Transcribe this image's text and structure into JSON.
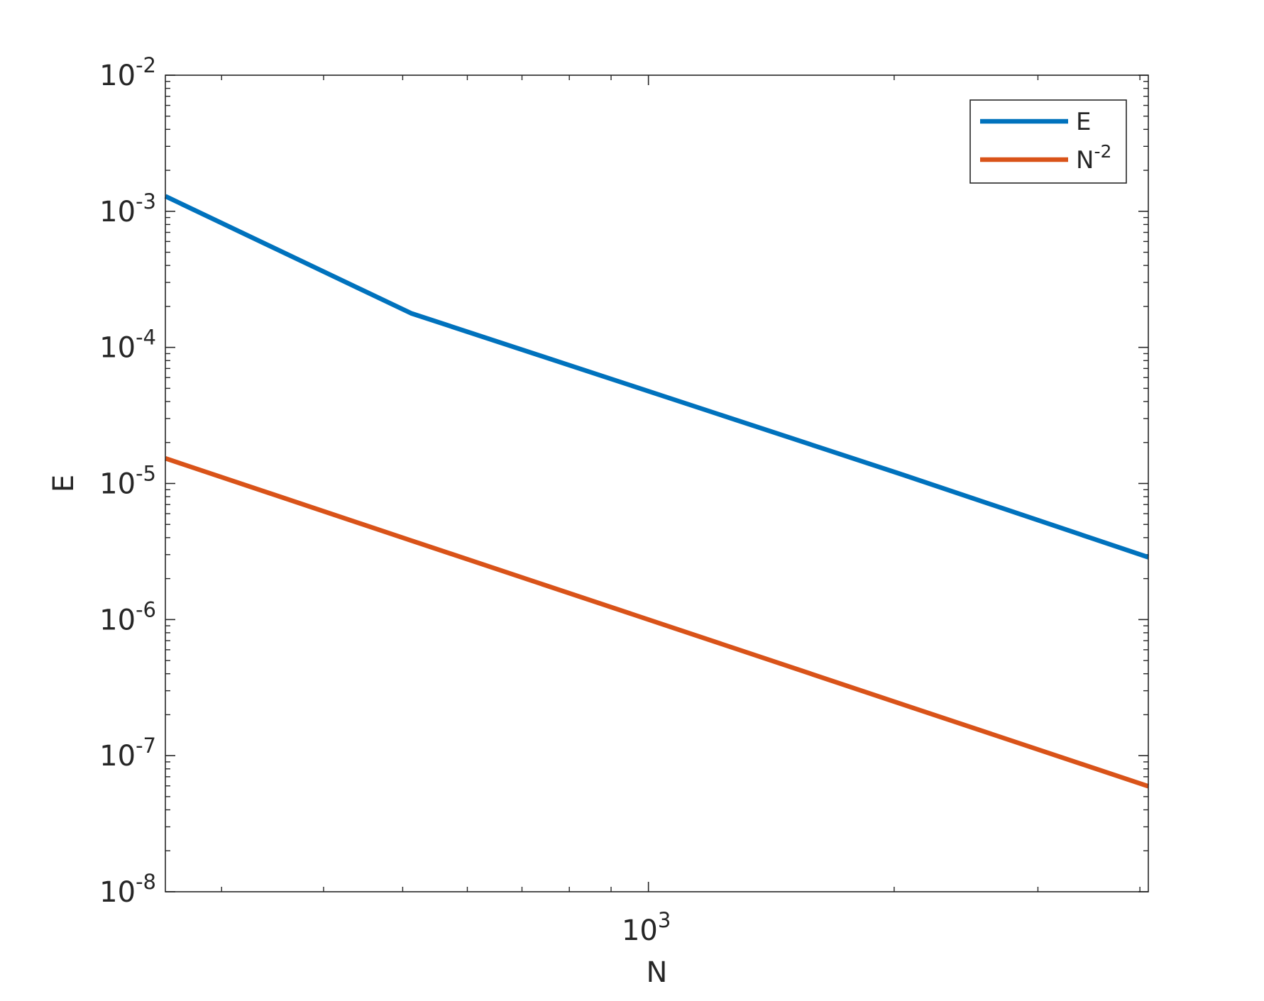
{
  "chart_data": {
    "type": "line",
    "title": "",
    "xlabel": "N",
    "ylabel": "E",
    "x_scale": "log",
    "y_scale": "log",
    "xlim": [
      256,
      4096
    ],
    "ylim": [
      1e-08,
      0.01
    ],
    "x_ticks": [
      {
        "value": 1000,
        "base": "10",
        "exp": "3"
      }
    ],
    "y_ticks": [
      {
        "value": 1e-08,
        "base": "10",
        "exp": "-8"
      },
      {
        "value": 1e-07,
        "base": "10",
        "exp": "-7"
      },
      {
        "value": 1e-06,
        "base": "10",
        "exp": "-6"
      },
      {
        "value": 1e-05,
        "base": "10",
        "exp": "-5"
      },
      {
        "value": 0.0001,
        "base": "10",
        "exp": "-4"
      },
      {
        "value": 0.001,
        "base": "10",
        "exp": "-3"
      },
      {
        "value": 0.01,
        "base": "10",
        "exp": "-2"
      }
    ],
    "grid": false,
    "legend_position": "top-right",
    "series": [
      {
        "name": "E",
        "legend_base": "E",
        "legend_exp": "",
        "color": "#0072BD",
        "x": [
          256,
          512,
          1024,
          2048,
          4096
        ],
        "y": [
          0.00129,
          0.000178,
          4.55e-05,
          1.16e-05,
          2.87e-06
        ]
      },
      {
        "name": "N^-2",
        "legend_base": "N",
        "legend_exp": "-2",
        "color": "#D95319",
        "x": [
          256,
          512,
          1024,
          2048,
          4096
        ],
        "y": [
          1.53e-05,
          3.81e-06,
          9.54e-07,
          2.38e-07,
          5.96e-08
        ]
      }
    ]
  }
}
